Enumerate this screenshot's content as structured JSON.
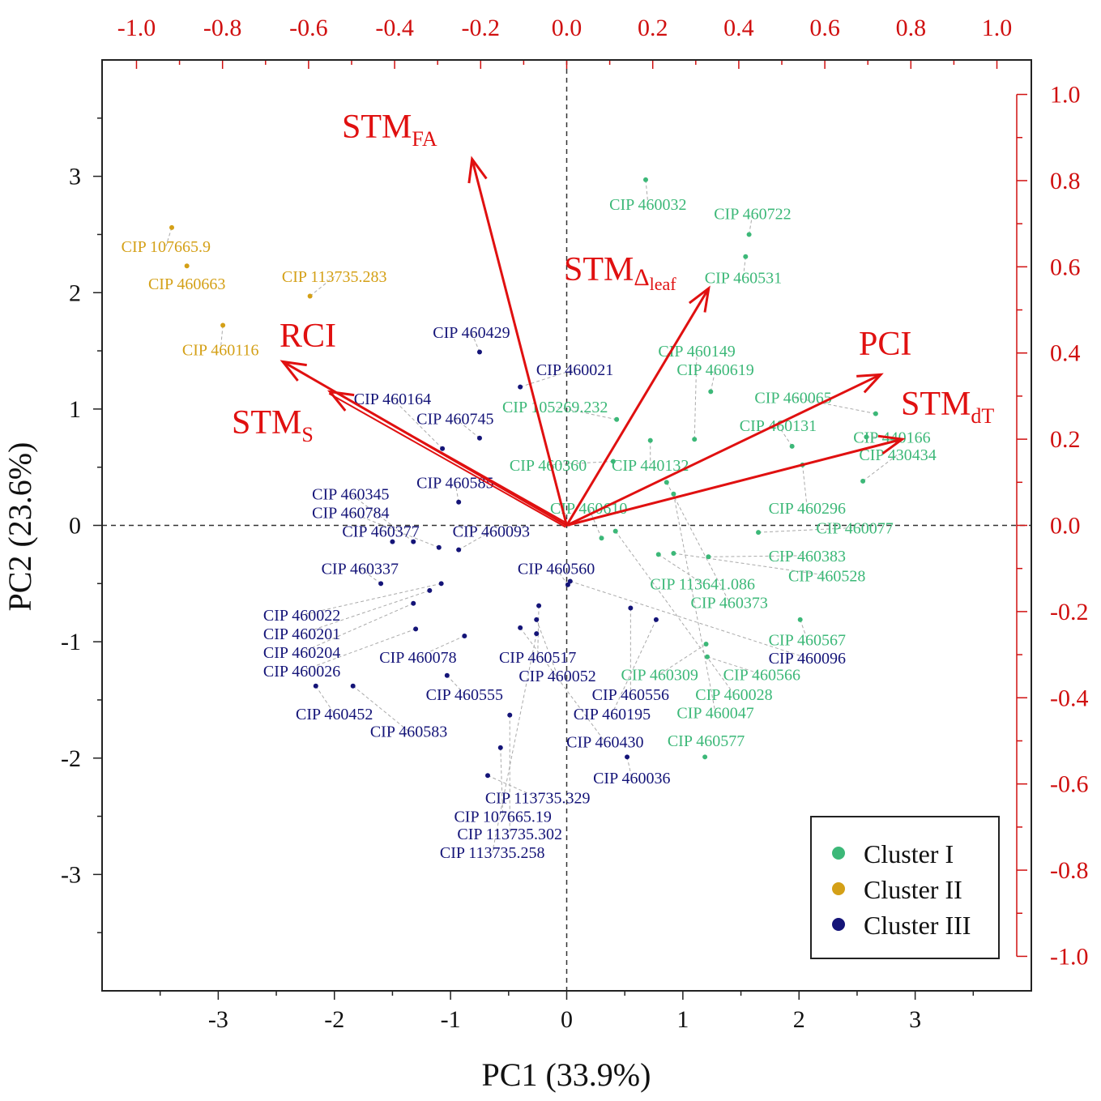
{
  "chart_data": {
    "type": "scatter",
    "subtype": "pca-biplot",
    "xlabel": "PC1 (33.9%)",
    "ylabel": "PC2 (23.6%)",
    "xlim": [
      -4,
      4
    ],
    "ylim": [
      -4,
      4
    ],
    "xticks": [
      "-3",
      "-2",
      "-1",
      "0",
      "1",
      "2",
      "3"
    ],
    "xtick_values": [
      -3,
      -2,
      -1,
      0,
      1,
      2,
      3
    ],
    "yticks": [
      "3",
      "2",
      "1",
      "0",
      "-1",
      "-2",
      "-3"
    ],
    "ytick_values": [
      3,
      2,
      1,
      0,
      -1,
      -2,
      -3
    ],
    "secondary_xticks": [
      "-1.0",
      "-0.8",
      "-0.6",
      "-0.4",
      "-0.2",
      "0.0",
      "0.2",
      "0.4",
      "0.6",
      "0.8",
      "1.0"
    ],
    "secondary_xtick_values": [
      -1,
      -0.8,
      -0.6,
      -0.4,
      -0.2,
      0,
      0.2,
      0.4,
      0.6,
      0.8,
      1
    ],
    "secondary_yticks": [
      "1.0",
      "0.8",
      "0.6",
      "0.4",
      "0.2",
      "0.0",
      "-0.2",
      "-0.4",
      "-0.6",
      "-0.8",
      "-1.0"
    ],
    "secondary_ytick_values": [
      1,
      0.8,
      0.6,
      0.4,
      0.2,
      0,
      -0.2,
      -0.4,
      -0.6,
      -0.8,
      -1
    ],
    "secondary_range": [
      -1.08,
      1.08
    ],
    "colors": {
      "Cluster I": "#3cb878",
      "Cluster II": "#d4a017",
      "Cluster III": "#141478",
      "loading": "#e01010"
    },
    "legend": {
      "position": "bottom-right",
      "entries": [
        "Cluster I",
        "Cluster II",
        "Cluster III"
      ]
    },
    "loadings": [
      {
        "base": "STM",
        "sub": "FA",
        "x": -0.22,
        "y": 0.85
      },
      {
        "base": "STM",
        "sub": "Δ",
        "sub2": "leaf",
        "x": 0.33,
        "y": 0.55
      },
      {
        "base": "PCI",
        "sub": "",
        "x": 0.73,
        "y": 0.35
      },
      {
        "base": "STM",
        "sub": "dT",
        "x": 0.78,
        "y": 0.2
      },
      {
        "base": "RCI",
        "sub": "",
        "x": -0.66,
        "y": 0.38
      },
      {
        "base": "STM",
        "sub": "S",
        "x": -0.55,
        "y": 0.31
      }
    ],
    "series": [
      {
        "name": "Cluster I",
        "points": [
          {
            "label": "CIP 460032",
            "x": 0.68,
            "y": 2.97,
            "lx": 0.7,
            "ly": 2.76
          },
          {
            "label": "CIP 460722",
            "x": 1.57,
            "y": 2.5,
            "lx": 1.6,
            "ly": 2.68
          },
          {
            "label": "CIP 460531",
            "x": 1.54,
            "y": 2.31,
            "lx": 1.52,
            "ly": 2.13
          },
          {
            "label": "CIP 460149",
            "x": 1.1,
            "y": 0.74,
            "lx": 1.12,
            "ly": 1.5
          },
          {
            "label": "CIP 460619",
            "x": 1.24,
            "y": 1.15,
            "lx": 1.28,
            "ly": 1.34
          },
          {
            "label": "CIP 460065",
            "x": 2.66,
            "y": 0.96,
            "lx": 1.95,
            "ly": 1.1
          },
          {
            "label": "CIP 460131",
            "x": 1.94,
            "y": 0.68,
            "lx": 1.82,
            "ly": 0.86
          },
          {
            "label": "CIP 105269.232",
            "x": 0.43,
            "y": 0.91,
            "lx": -0.1,
            "ly": 1.02
          },
          {
            "label": "CIP 440166",
            "x": 2.58,
            "y": 0.76,
            "lx": 2.8,
            "ly": 0.76
          },
          {
            "label": "CIP 430434",
            "x": 2.55,
            "y": 0.38,
            "lx": 2.85,
            "ly": 0.61
          },
          {
            "label": "CIP 460360",
            "x": 0.4,
            "y": 0.55,
            "lx": -0.16,
            "ly": 0.52
          },
          {
            "label": "CIP 440132",
            "x": 0.72,
            "y": 0.73,
            "lx": 0.72,
            "ly": 0.52
          },
          {
            "label": "CIP 460610",
            "x": 0.3,
            "y": -0.11,
            "lx": 0.19,
            "ly": 0.15
          },
          {
            "label": "CIP 460296",
            "x": 2.03,
            "y": 0.52,
            "lx": 2.07,
            "ly": 0.15
          },
          {
            "label": "CIP 460077",
            "x": 1.65,
            "y": -0.06,
            "lx": 2.48,
            "ly": -0.02
          },
          {
            "label": "CIP 460383",
            "x": 1.22,
            "y": -0.27,
            "lx": 2.07,
            "ly": -0.26
          },
          {
            "label": "CIP 460528",
            "x": 0.92,
            "y": -0.24,
            "lx": 2.24,
            "ly": -0.43
          },
          {
            "label": "CIP 113641.086",
            "x": 0.79,
            "y": -0.25,
            "lx": 1.17,
            "ly": -0.5
          },
          {
            "label": "CIP 460373",
            "x": 0.86,
            "y": 0.37,
            "lx": 1.4,
            "ly": -0.66
          },
          {
            "label": "CIP 460567",
            "x": 2.01,
            "y": -0.81,
            "lx": 2.07,
            "ly": -0.98
          },
          {
            "label": "CIP 460309",
            "x": 1.2,
            "y": -1.02,
            "lx": 0.8,
            "ly": -1.28
          },
          {
            "label": "CIP 460566",
            "x": 1.21,
            "y": -1.13,
            "lx": 1.68,
            "ly": -1.28
          },
          {
            "label": "CIP 460028",
            "x": 0.42,
            "y": -0.05,
            "lx": 1.44,
            "ly": -1.45
          },
          {
            "label": "CIP 460047",
            "x": 0.92,
            "y": 0.27,
            "lx": 1.28,
            "ly": -1.61
          },
          {
            "label": "CIP 460577",
            "x": 1.19,
            "y": -1.99,
            "lx": 1.2,
            "ly": -1.85
          }
        ]
      },
      {
        "name": "Cluster II",
        "points": [
          {
            "label": "CIP 107665.9",
            "x": -3.4,
            "y": 2.56,
            "lx": -3.45,
            "ly": 2.4
          },
          {
            "label": "CIP 460663",
            "x": -3.27,
            "y": 2.23,
            "lx": -3.27,
            "ly": 2.08
          },
          {
            "label": "CIP 113735.283",
            "x": -2.21,
            "y": 1.97,
            "lx": -2.0,
            "ly": 2.14
          },
          {
            "label": "CIP 460116",
            "x": -2.96,
            "y": 1.72,
            "lx": -2.98,
            "ly": 1.51
          }
        ]
      },
      {
        "name": "Cluster III",
        "points": [
          {
            "label": "CIP 460429",
            "x": -0.75,
            "y": 1.49,
            "lx": -0.82,
            "ly": 1.66
          },
          {
            "label": "CIP 460021",
            "x": -0.4,
            "y": 1.19,
            "lx": 0.07,
            "ly": 1.34
          },
          {
            "label": "CIP 460164",
            "x": -1.07,
            "y": 0.66,
            "lx": -1.5,
            "ly": 1.09
          },
          {
            "label": "CIP 460745",
            "x": -0.75,
            "y": 0.75,
            "lx": -0.96,
            "ly": 0.92
          },
          {
            "label": "CIP 460585",
            "x": -0.93,
            "y": 0.2,
            "lx": -0.96,
            "ly": 0.37
          },
          {
            "label": "CIP 460345",
            "x": -1.32,
            "y": -0.14,
            "lx": -1.86,
            "ly": 0.27
          },
          {
            "label": "CIP 460784",
            "x": -1.1,
            "y": -0.19,
            "lx": -1.86,
            "ly": 0.11
          },
          {
            "label": "CIP 460377",
            "x": -1.5,
            "y": -0.14,
            "lx": -1.6,
            "ly": -0.05
          },
          {
            "label": "CIP 460093",
            "x": -0.93,
            "y": -0.21,
            "lx": -0.65,
            "ly": -0.05
          },
          {
            "label": "CIP 460337",
            "x": -1.6,
            "y": -0.5,
            "lx": -1.78,
            "ly": -0.37
          },
          {
            "label": "CIP 460560",
            "x": 0.01,
            "y": -0.51,
            "lx": -0.09,
            "ly": -0.37
          },
          {
            "label": "CIP 460022",
            "x": -1.08,
            "y": -0.5,
            "lx": -2.28,
            "ly": -0.77
          },
          {
            "label": "CIP 460201",
            "x": -1.18,
            "y": -0.56,
            "lx": -2.28,
            "ly": -0.93
          },
          {
            "label": "CIP 460204",
            "x": -1.32,
            "y": -0.67,
            "lx": -2.28,
            "ly": -1.09
          },
          {
            "label": "CIP 460026",
            "x": -1.3,
            "y": -0.89,
            "lx": -2.28,
            "ly": -1.25
          },
          {
            "label": "CIP 460078",
            "x": -0.88,
            "y": -0.95,
            "lx": -1.28,
            "ly": -1.13
          },
          {
            "label": "CIP 460517",
            "x": -0.24,
            "y": -0.69,
            "lx": -0.25,
            "ly": -1.13
          },
          {
            "label": "CIP 460052",
            "x": -0.26,
            "y": -0.81,
            "lx": -0.08,
            "ly": -1.29
          },
          {
            "label": "CIP 460555",
            "x": -1.03,
            "y": -1.29,
            "lx": -0.88,
            "ly": -1.45
          },
          {
            "label": "CIP 460556",
            "x": 0.55,
            "y": -0.71,
            "lx": 0.55,
            "ly": -1.45
          },
          {
            "label": "CIP 460195",
            "x": 0.77,
            "y": -0.81,
            "lx": 0.39,
            "ly": -1.62
          },
          {
            "label": "CIP 460452",
            "x": -2.16,
            "y": -1.38,
            "lx": -2.0,
            "ly": -1.62
          },
          {
            "label": "CIP 460583",
            "x": -1.84,
            "y": -1.38,
            "lx": -1.36,
            "ly": -1.77
          },
          {
            "label": "CIP 460430",
            "x": -0.4,
            "y": -0.88,
            "lx": 0.33,
            "ly": -1.86
          },
          {
            "label": "CIP 460036",
            "x": 0.52,
            "y": -1.99,
            "lx": 0.56,
            "ly": -2.17
          },
          {
            "label": "CIP 113735.329",
            "x": -0.68,
            "y": -2.15,
            "lx": -0.25,
            "ly": -2.34
          },
          {
            "label": "CIP 107665.19",
            "x": -0.57,
            "y": -1.91,
            "lx": -0.55,
            "ly": -2.5
          },
          {
            "label": "CIP 113735.302",
            "x": -0.49,
            "y": -1.63,
            "lx": -0.49,
            "ly": -2.65
          },
          {
            "label": "CIP 113735.258",
            "x": -0.26,
            "y": -0.93,
            "lx": -0.64,
            "ly": -2.81
          },
          {
            "label": "CIP 460096",
            "x": 0.03,
            "y": -0.48,
            "lx": 2.07,
            "ly": -1.14
          }
        ]
      }
    ]
  }
}
